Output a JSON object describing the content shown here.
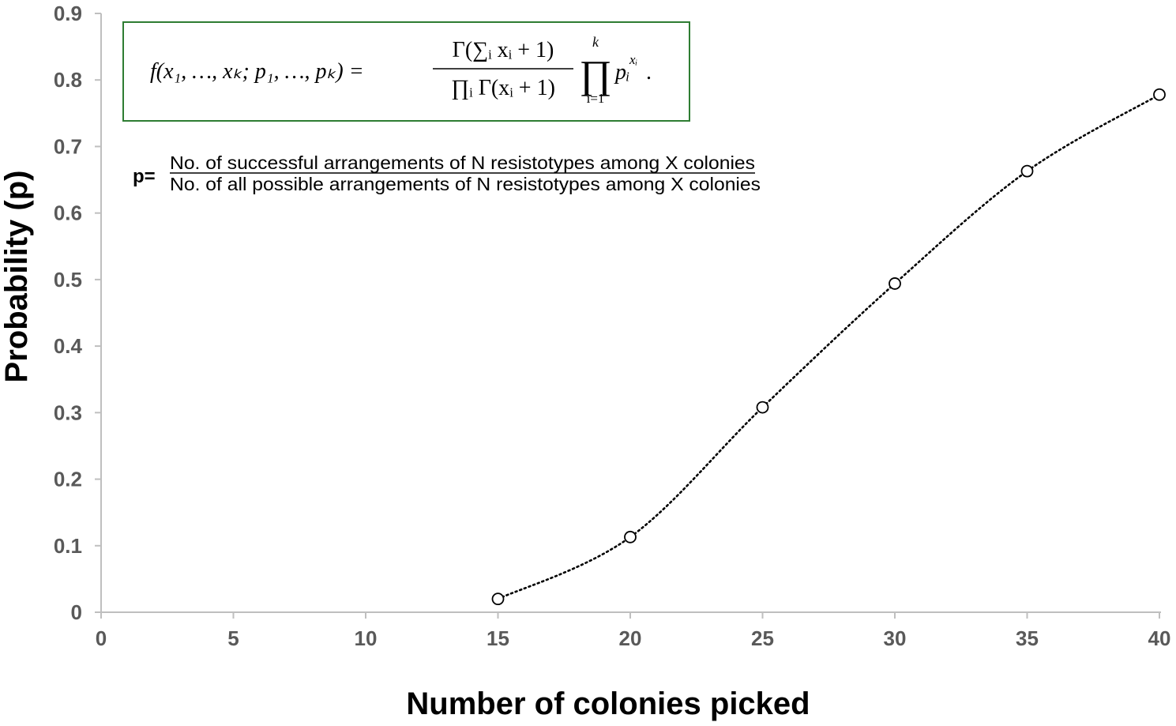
{
  "chart_data": {
    "type": "scatter",
    "x": [
      15,
      20,
      25,
      30,
      35,
      40
    ],
    "y": [
      0.02,
      0.113,
      0.308,
      0.494,
      0.663,
      0.778
    ],
    "xlabel": "Number of colonies picked",
    "ylabel": "Probability (p)",
    "xlim": [
      0,
      40
    ],
    "ylim": [
      0,
      0.9
    ],
    "xticks": [
      "0",
      "5",
      "10",
      "15",
      "20",
      "25",
      "30",
      "35",
      "40"
    ],
    "yticks": [
      "0",
      "0.1",
      "0.2",
      "0.3",
      "0.4",
      "0.5",
      "0.6",
      "0.7",
      "0.8",
      "0.9"
    ],
    "grid": false,
    "marker": "open-circle",
    "trendline": "dotted-smooth",
    "colors": {
      "axis": "#bfbfbf",
      "tick_text": "#595959",
      "marker": "#000000",
      "formula_border": "#2e7d32"
    },
    "annotations": {
      "formula": {
        "lhs": "f(x₁, …, xₖ; p₁, …, pₖ) =",
        "numerator": "Γ(∑ᵢ xᵢ + 1)",
        "denominator": "∏ᵢ Γ(xᵢ + 1)",
        "product_symbol": "∏",
        "product_upper": "k",
        "product_lower": "i=1",
        "term": "pᵢ",
        "term_exponent": "xᵢ",
        "end": "."
      },
      "p_definition": {
        "label": "p=",
        "numerator": "No. of successful arrangements of N resistotypes among X colonies",
        "denominator": "No. of all possible arrangements of N resistotypes among X colonies"
      }
    }
  }
}
